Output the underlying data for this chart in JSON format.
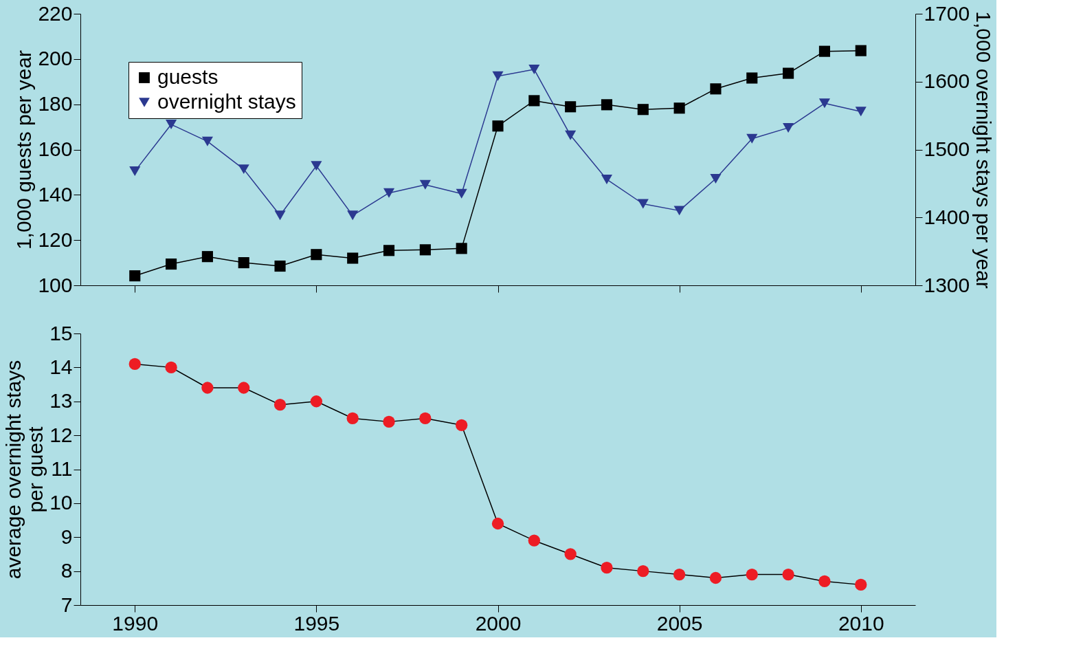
{
  "chart_data": [
    {
      "type": "line",
      "ylabel": "1,000 guests per year",
      "y2label": "1,000 overnight stays per year",
      "x": [
        1990,
        1991,
        1992,
        1993,
        1994,
        1995,
        1996,
        1997,
        1998,
        1999,
        2000,
        2001,
        2002,
        2003,
        2004,
        2005,
        2006,
        2007,
        2008,
        2009,
        2010
      ],
      "series": [
        {
          "name": "guests",
          "color": "#000000",
          "marker": "square",
          "values": [
            104.2,
            109.4,
            112.7,
            110,
            108.5,
            113.6,
            112,
            115.4,
            115.7,
            116.3,
            170.4,
            181.6,
            178.9,
            179.8,
            177.7,
            178.3,
            186.8,
            191.6,
            193.7,
            203.4,
            203.7
          ]
        },
        {
          "name": "overnight stays",
          "color": "#2b3990",
          "marker": "triangle",
          "axis": "y2",
          "values": [
            1468,
            1537,
            1512,
            1471,
            1403,
            1476,
            1403,
            1436,
            1448,
            1435,
            1608,
            1618,
            1521,
            1456,
            1420,
            1410,
            1457,
            1516,
            1532,
            1568,
            1556
          ]
        }
      ],
      "xlim": [
        1988.5,
        2011.5
      ],
      "xticks": [
        1990,
        1995,
        2000,
        2005,
        2010
      ],
      "ylim": [
        100,
        220
      ],
      "yticks": [
        100,
        120,
        140,
        160,
        180,
        200,
        220
      ],
      "y2lim": [
        1300,
        1700
      ],
      "y2ticks": [
        1300,
        1400,
        1500,
        1600,
        1700
      ],
      "tick_labels": "y",
      "grid": false,
      "legend": "top left"
    },
    {
      "type": "line",
      "ylabel": "average overnight stays\nper guest",
      "x": [
        1990,
        1991,
        1992,
        1993,
        1994,
        1995,
        1996,
        1997,
        1998,
        1999,
        2000,
        2001,
        2002,
        2003,
        2004,
        2005,
        2006,
        2007,
        2008,
        2009,
        2010
      ],
      "series": [
        {
          "color": "#ed1c24",
          "marker": "circle",
          "values": [
            14.1,
            14.0,
            13.4,
            13.4,
            12.9,
            13.0,
            12.5,
            12.4,
            12.5,
            12.3,
            9.4,
            8.9,
            8.5,
            8.1,
            8.0,
            7.9,
            7.8,
            7.9,
            7.9,
            7.7,
            7.6
          ]
        }
      ],
      "xlim": [
        1988.5,
        2011.5
      ],
      "xticks": [
        1990,
        1995,
        2000,
        2005,
        2010
      ],
      "ylim": [
        7,
        15
      ],
      "yticks": [
        7,
        8,
        9,
        10,
        11,
        12,
        13,
        14,
        15
      ],
      "grid": false,
      "legend": false
    }
  ]
}
